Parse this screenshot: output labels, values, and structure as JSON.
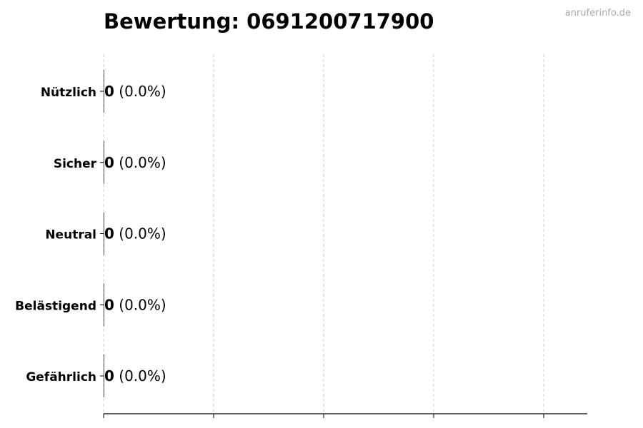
{
  "watermark": "anruferinfo.de",
  "chart_data": {
    "type": "bar",
    "orientation": "horizontal",
    "title": "Bewertung: 06912007179​00",
    "categories": [
      "Nützlich",
      "Sicher",
      "Neutral",
      "Belästigend",
      "Gefährlich"
    ],
    "values": [
      0,
      0,
      0,
      0,
      0
    ],
    "value_labels": [
      "0",
      "0",
      "0",
      "0",
      "0"
    ],
    "percent_labels": [
      "(0.0%)",
      "(0.0%)",
      "(0.0%)",
      "(0.0%)",
      "(0.0%)"
    ],
    "xlabel": "",
    "ylabel": "",
    "grid": "x-dashed",
    "colors": {
      "bar_edge": "#222222",
      "grid": "#cccccc",
      "watermark": "#aaaaaa"
    }
  }
}
